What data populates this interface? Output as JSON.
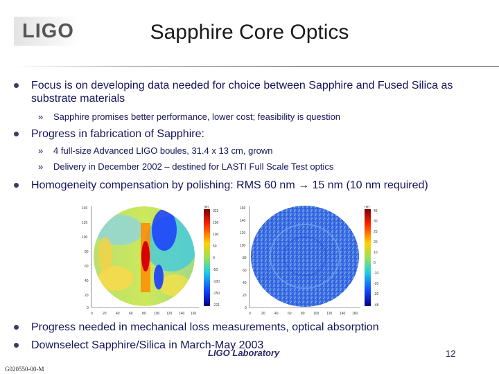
{
  "logo": {
    "text": "LIGO"
  },
  "title": "Sapphire Core Optics",
  "bullets": [
    {
      "text": "Focus is on developing data needed for choice between Sapphire and Fused Silica as substrate materials",
      "subs": [
        "Sapphire promises better performance, lower cost; feasibility is question"
      ]
    },
    {
      "text": "Progress in fabrication of Sapphire:",
      "subs": [
        "4 full-size Advanced LIGO boules, 31.4 x 13 cm, grown",
        "Delivery in December 2002 – destined for LASTI Full Scale Test optics"
      ]
    },
    {
      "text": "Homogeneity compensation by polishing:  RMS 60 nm → 15 nm (10 nm required)",
      "subs": []
    },
    {
      "text": "Progress needed in mechanical loss measurements, optical absorption",
      "subs": []
    },
    {
      "text": "Downselect Sapphire/Silica in March-May 2003",
      "subs": []
    }
  ],
  "sub_marker": "»",
  "footer": {
    "lab": "LIGO Laboratory",
    "page": "12",
    "doc_id": "G020550-00-M"
  },
  "figures": {
    "left": {
      "y_ticks": [
        "140",
        "120",
        "100",
        "80",
        "60",
        "40",
        "20",
        "0"
      ],
      "x_ticks": [
        "0",
        "20",
        "40",
        "60",
        "80",
        "100",
        "120",
        "140",
        "160"
      ],
      "unit": "nm",
      "scale": [
        "322",
        "150",
        "100",
        "50",
        "0",
        "-50",
        "-100",
        "-150",
        "-221"
      ]
    },
    "right": {
      "y_ticks": [
        "160",
        "140",
        "120",
        "100",
        "80",
        "60",
        "40",
        "20",
        "0"
      ],
      "x_ticks": [
        "0",
        "20",
        "40",
        "60",
        "80",
        "100",
        "120",
        "140",
        "160"
      ],
      "unit": "nm",
      "scale": [
        "45",
        "30",
        "25",
        "20",
        "10",
        "0",
        "-10",
        "-20",
        "-30",
        "-48"
      ]
    }
  }
}
